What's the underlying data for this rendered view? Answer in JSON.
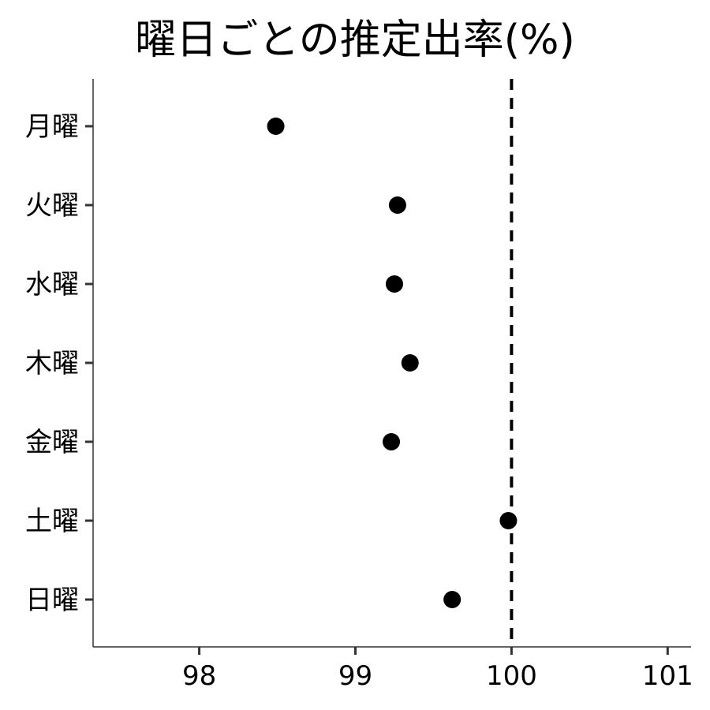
{
  "chart_data": {
    "type": "scatter",
    "title": "曜日ごとの推定出率(%)",
    "categories": [
      "月曜",
      "火曜",
      "水曜",
      "木曜",
      "金曜",
      "土曜",
      "日曜"
    ],
    "values": [
      98.49,
      99.27,
      99.25,
      99.35,
      99.23,
      99.98,
      99.62
    ],
    "xlim": [
      97.32,
      101.15
    ],
    "xticks": [
      98,
      99,
      100,
      101
    ],
    "reference_line": 100,
    "grid": false,
    "point_color": "#000000",
    "reference_line_color": "#000000"
  }
}
